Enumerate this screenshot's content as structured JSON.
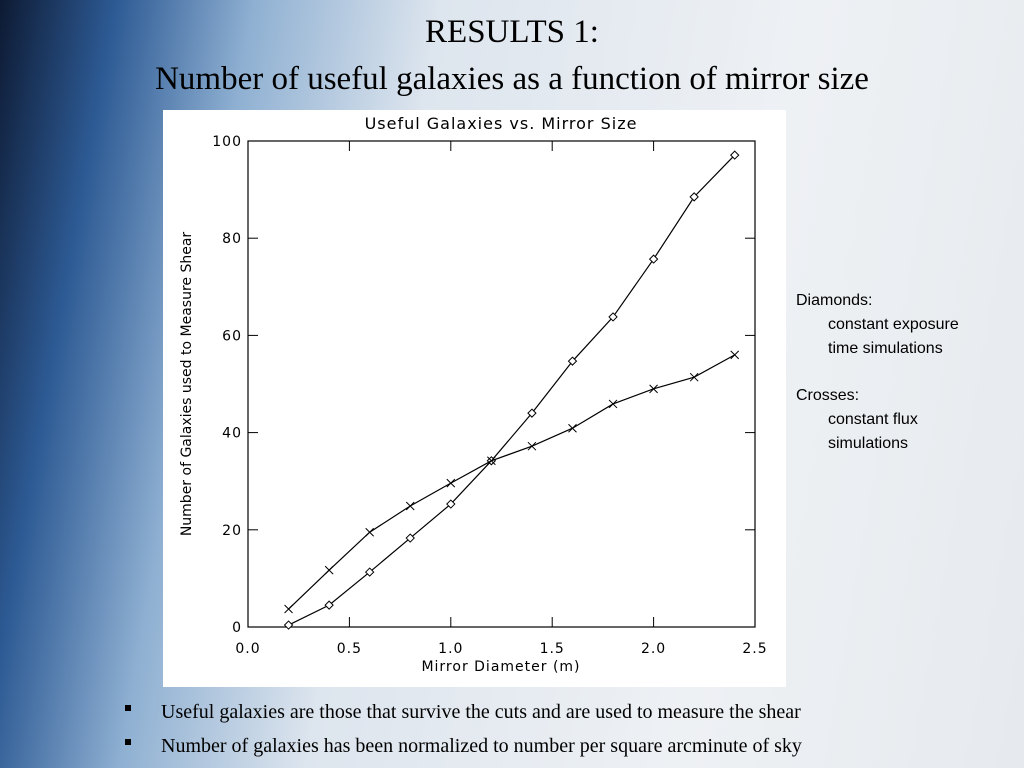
{
  "slide": {
    "title": [
      "RESULTS 1:",
      "Number of useful galaxies as a function of mirror size"
    ]
  },
  "chart_data": {
    "type": "line",
    "title": "Useful Galaxies vs. Mirror Size",
    "x_label": "Mirror Diameter (m)",
    "y_label": "Number of Galaxies used to Measure Shear",
    "x": [
      0.2,
      0.4,
      0.6,
      0.8,
      1.0,
      1.2,
      1.4,
      1.6,
      1.8,
      2.0,
      2.2,
      2.4
    ],
    "series": [
      {
        "marker": "diamond",
        "color": "#000000",
        "values": [
          0.4,
          4.5,
          11.3,
          18.3,
          25.3,
          34.2,
          44.0,
          54.7,
          63.8,
          75.7,
          88.5,
          97.1
        ]
      },
      {
        "marker": "cross",
        "color": "#000000",
        "values": [
          3.7,
          11.7,
          19.5,
          24.9,
          29.6,
          34.2,
          37.2,
          40.9,
          45.9,
          49.0,
          51.4,
          56.0
        ]
      }
    ],
    "xlim": [
      0,
      2.5
    ],
    "xticks": [
      {
        "value": 0,
        "label": "0.0"
      },
      0.5,
      {
        "value": 1,
        "label": "1.0"
      },
      1.5,
      {
        "value": 2,
        "label": "2.0"
      },
      2.5
    ],
    "ylim": [
      0,
      100
    ],
    "yticks": [
      0,
      20,
      40,
      60,
      80,
      100
    ],
    "grid": false
  },
  "notes": [
    {
      "heading": "Diamonds:",
      "lines": [
        "constant exposure",
        "time simulations"
      ]
    },
    {
      "heading": "Crosses:",
      "lines": [
        "constant flux",
        "simulations"
      ]
    }
  ],
  "bullets": [
    "Useful galaxies are those that survive the cuts and are used to measure the shear",
    "Number of galaxies has been normalized to number per square arcminute of sky"
  ]
}
